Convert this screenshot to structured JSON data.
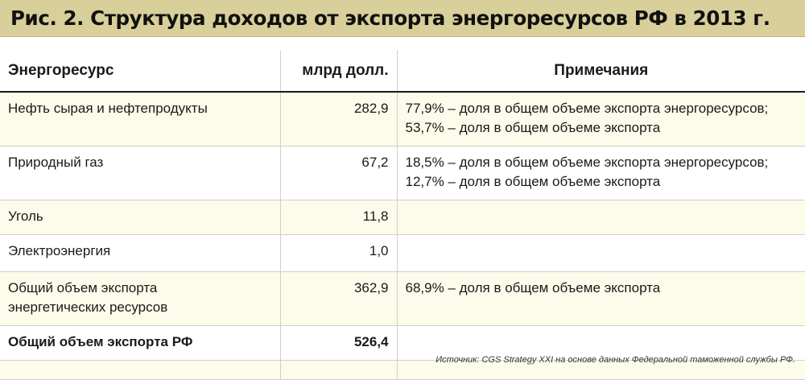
{
  "title": "Рис. 2. Структура доходов от экспорта энергоресурсов РФ в 2013 г.",
  "columns": [
    "Энергоресурс",
    "млрд долл.",
    "Примечания"
  ],
  "rows": [
    {
      "resource": "Нефть сырая и нефтепродукты",
      "value": "282,9",
      "notes": [
        "77,9% – доля в общем объеме экспорта энергоресурсов;",
        "53,7% – доля в общем объеме экспорта"
      ]
    },
    {
      "resource": "Природный газ",
      "value": "67,2",
      "notes": [
        "18,5% – доля в общем объеме экспорта энергоресурсов;",
        "12,7% – доля в общем объеме экспорта"
      ]
    },
    {
      "resource": "Уголь",
      "value": "11,8",
      "notes": []
    },
    {
      "resource": "Электроэнергия",
      "value": "1,0",
      "notes": []
    },
    {
      "resource_lines": [
        "Общий объем экспорта",
        "энергетических ресурсов"
      ],
      "value": "362,9",
      "notes": [
        "68,9% – доля в общем объеме экспорта"
      ]
    },
    {
      "resource": "Общий объем экспорта РФ",
      "value": "526,4",
      "notes": []
    }
  ],
  "source": "Источник: CGS Strategy XXI на основе данных Федеральной таможенной службы РФ."
}
